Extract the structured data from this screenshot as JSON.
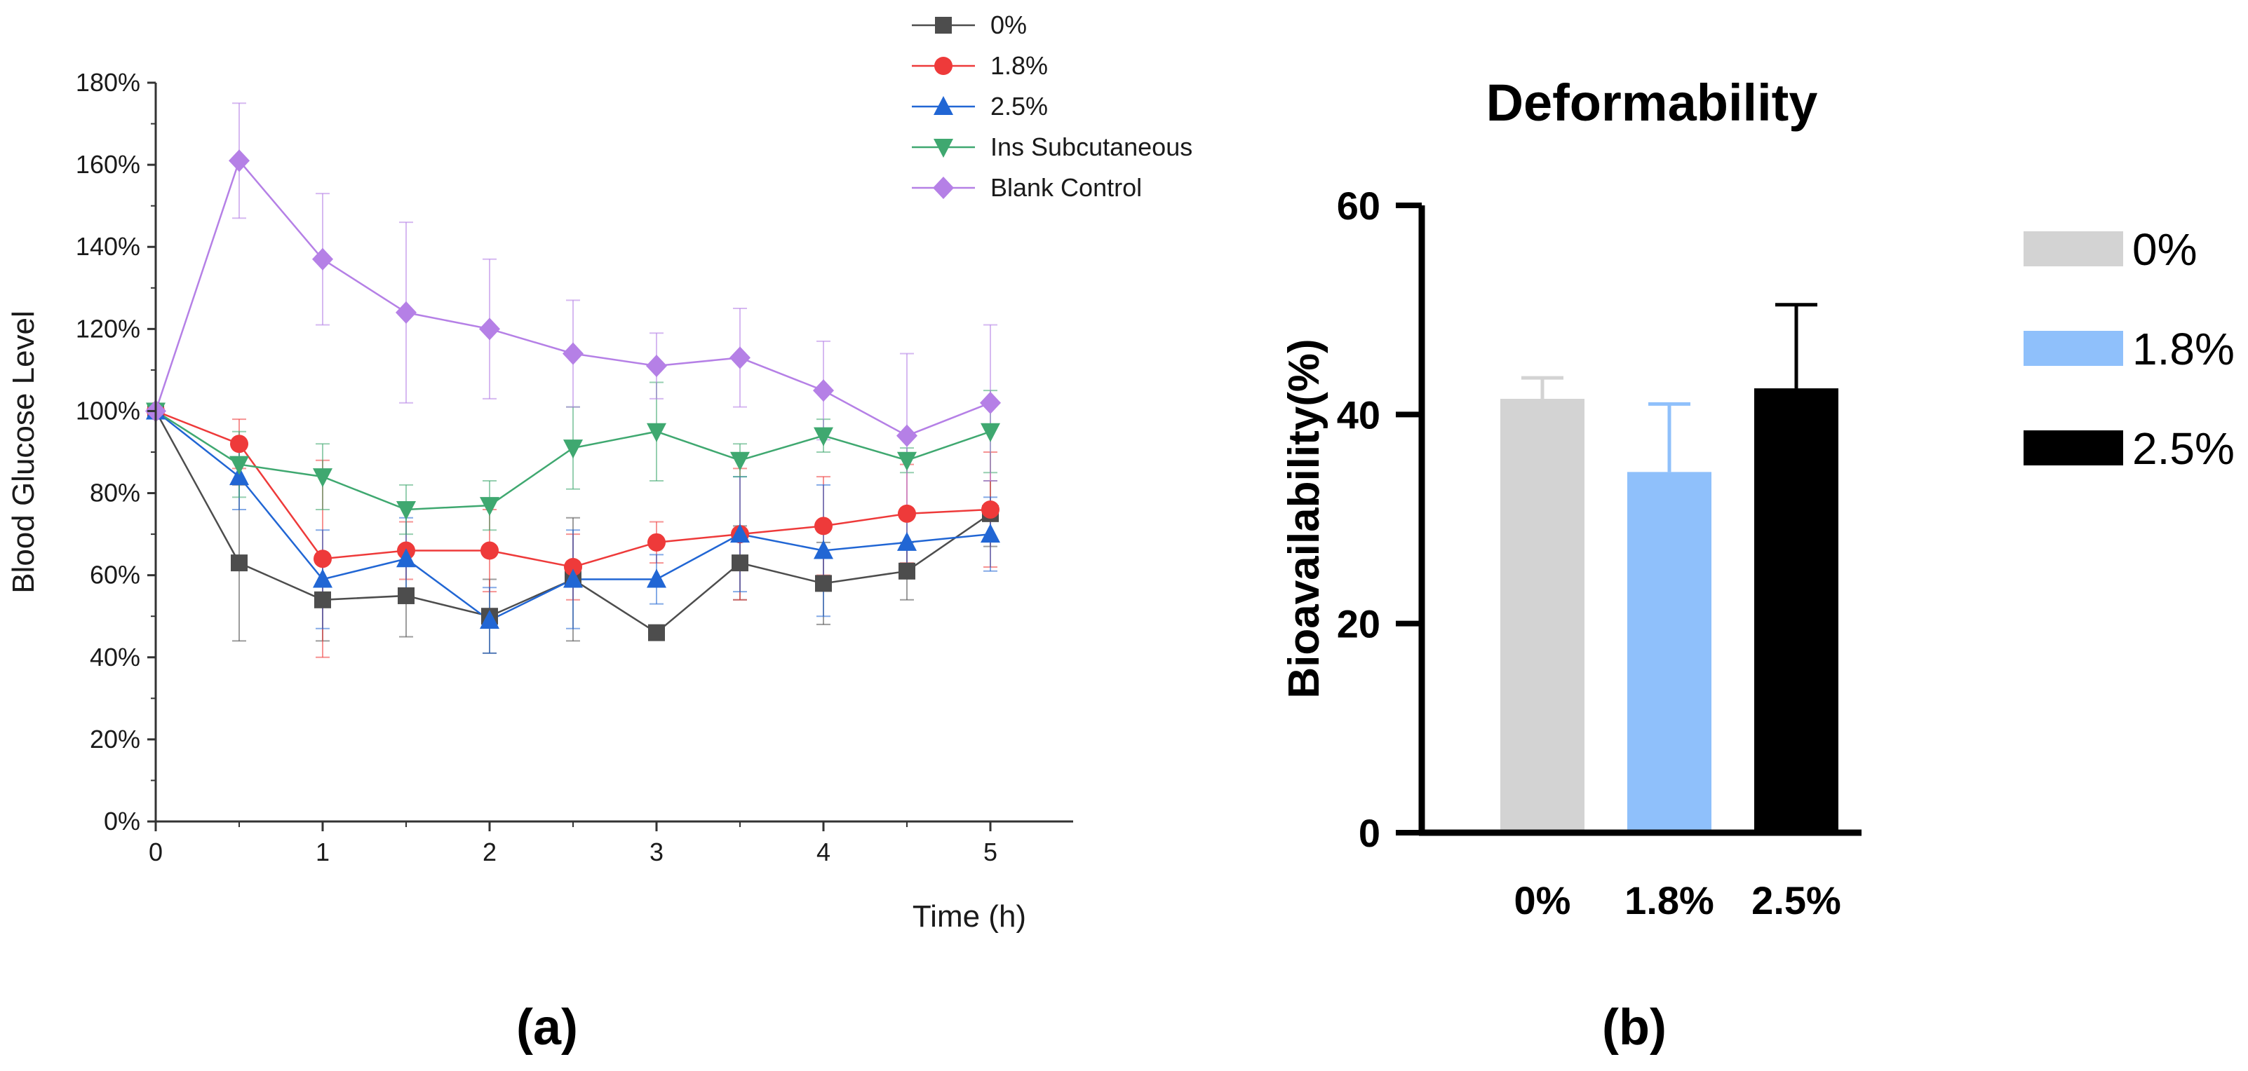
{
  "chart_data": [
    {
      "type": "line",
      "panel_label": "(a)",
      "xlabel": "Time (h)",
      "ylabel": "Blood Glucose Level",
      "xlim": [
        0,
        5.5
      ],
      "ylim": [
        0,
        180
      ],
      "xticks": [
        "0",
        "1",
        "2",
        "3",
        "4",
        "5"
      ],
      "yticks": [
        "0%",
        "20%",
        "40%",
        "60%",
        "80%",
        "100%",
        "120%",
        "140%",
        "160%",
        "180%"
      ],
      "x": [
        0,
        0.5,
        1,
        1.5,
        2,
        2.5,
        3,
        3.5,
        4,
        4.5,
        5
      ],
      "series": [
        {
          "name": "0%",
          "color": "#4d4d4d",
          "marker": "square",
          "values": [
            100,
            63,
            54,
            55,
            50,
            59,
            46,
            63,
            58,
            61,
            75
          ],
          "errors": [
            0,
            19,
            10,
            10,
            9,
            15,
            1,
            9,
            10,
            7,
            8
          ]
        },
        {
          "name": "1.8%",
          "color": "#ee3a3a",
          "marker": "circle",
          "values": [
            100,
            92,
            64,
            66,
            66,
            62,
            68,
            70,
            72,
            75,
            76
          ],
          "errors": [
            0,
            6,
            24,
            7,
            10,
            8,
            5,
            16,
            12,
            12,
            14
          ]
        },
        {
          "name": "2.5%",
          "color": "#2166d4",
          "marker": "triangle-up",
          "values": [
            100,
            84,
            59,
            64,
            49,
            59,
            59,
            70,
            66,
            68,
            70
          ],
          "errors": [
            0,
            8,
            12,
            10,
            8,
            12,
            6,
            14,
            16,
            7,
            9
          ]
        },
        {
          "name": "Ins Subcutaneous",
          "color": "#3fa870",
          "marker": "triangle-down",
          "values": [
            100,
            87,
            84,
            76,
            77,
            91,
            95,
            88,
            94,
            88,
            95
          ],
          "errors": [
            0,
            8,
            8,
            6,
            6,
            10,
            12,
            4,
            4,
            3,
            10
          ]
        },
        {
          "name": "Blank Control",
          "color": "#b580e6",
          "marker": "diamond",
          "values": [
            100,
            161,
            137,
            124,
            120,
            114,
            111,
            113,
            105,
            94,
            102
          ],
          "errors": [
            0,
            14,
            16,
            22,
            17,
            13,
            8,
            12,
            12,
            20,
            19
          ]
        }
      ]
    },
    {
      "type": "bar",
      "panel_label": "(b)",
      "title": "Deformability",
      "xlabel": "",
      "ylabel": "Bioavailability(%)",
      "ylim": [
        0,
        60
      ],
      "yticks": [
        "0",
        "20",
        "40",
        "60"
      ],
      "categories": [
        "0%",
        "1.8%",
        "2.5%"
      ],
      "values": [
        41.5,
        34.5,
        42.5
      ],
      "errors": [
        2,
        6.5,
        8
      ],
      "colors": [
        "#d3d3d3",
        "#8fc0fb",
        "#000000"
      ],
      "legend": [
        "0%",
        "1.8%",
        "2.5%"
      ]
    }
  ]
}
